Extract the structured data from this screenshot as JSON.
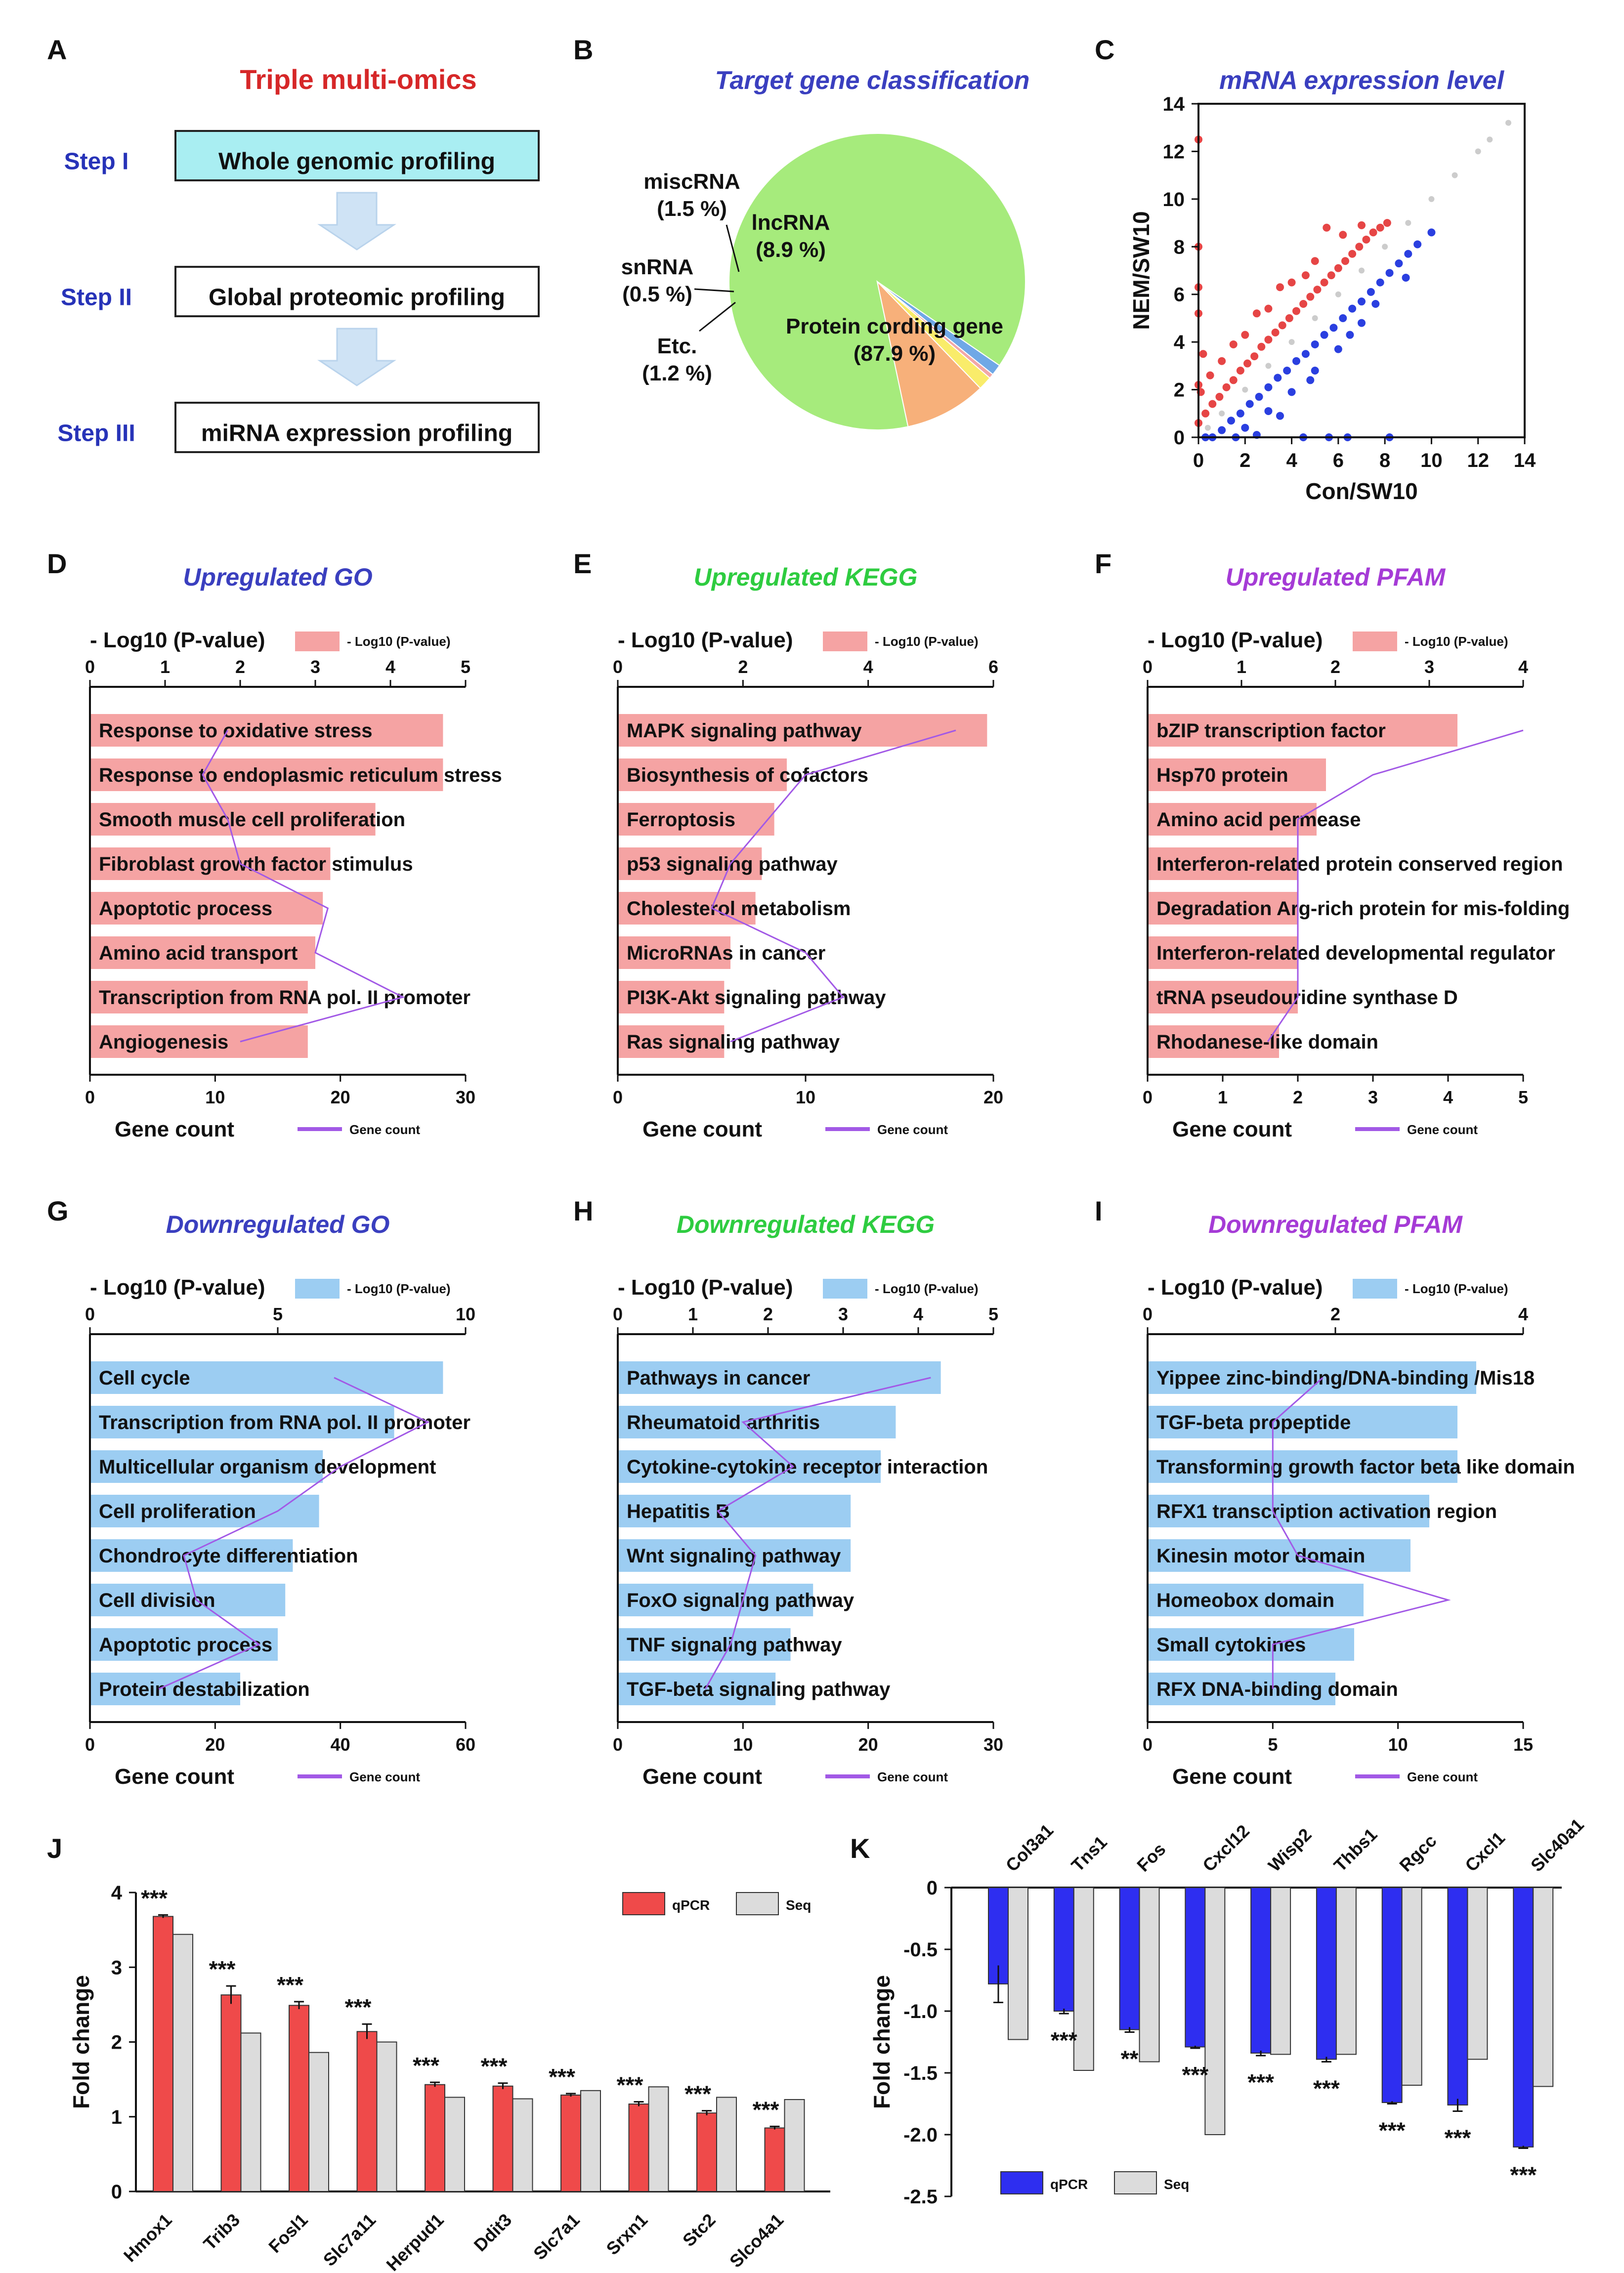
{
  "colors": {
    "title_red": "#d62728",
    "title_blue": "#3a3fbf",
    "title_green": "#2ecc40",
    "title_purple": "#a53bd6",
    "step_blue": "#2733b8",
    "step_box_fill": "#a9eef2",
    "arrow_fill": "#cfe3f5",
    "pie_green": "#a6eb7c",
    "pie_orange": "#f7b07a",
    "pie_yellow": "#f9ec6a",
    "pie_pink": "#f2a7a7",
    "pie_blue": "#6fa8e6",
    "scatter_red": "#e64545",
    "scatter_blue": "#2a3fe0",
    "scatter_grey": "#cccccc",
    "bar_pink": "#f5a3a3",
    "bar_lightblue": "#9ccdf2",
    "line_purple": "#a259e6",
    "bar_red": "#ef4a4a",
    "bar_grey": "#dcdcdc",
    "bar_darkblue": "#2e2ef0"
  },
  "panel_letters": [
    "A",
    "B",
    "C",
    "D",
    "E",
    "F",
    "G",
    "H",
    "I",
    "J",
    "K"
  ],
  "panel_a": {
    "title": "Triple multi-omics",
    "steps": [
      {
        "label": "Step I",
        "box": "Whole genomic profiling"
      },
      {
        "label": "Step II",
        "box": "Global proteomic profiling"
      },
      {
        "label": "Step III",
        "box": "miRNA expression profiling"
      }
    ]
  },
  "chart_data": [
    {
      "panel": "B",
      "type": "pie",
      "title": "Target gene classification",
      "slices": [
        {
          "name": "Protein cording gene",
          "percent": 87.9,
          "label": "Protein cording gene",
          "pct_label": "(87.9 %)",
          "color_key": "pie_green"
        },
        {
          "name": "Etc.",
          "percent": 1.2,
          "label": "Etc.",
          "pct_label": "(1.2 %)",
          "color_key": "pie_blue"
        },
        {
          "name": "snRNA",
          "percent": 0.5,
          "label": "snRNA",
          "pct_label": "(0.5 %)",
          "color_key": "pie_pink"
        },
        {
          "name": "miscRNA",
          "percent": 1.5,
          "label": "miscRNA",
          "pct_label": "(1.5 %)",
          "color_key": "pie_yellow"
        },
        {
          "name": "lncRNA",
          "percent": 8.9,
          "label": "lncRNA",
          "pct_label": "(8.9 %)",
          "color_key": "pie_orange"
        }
      ]
    },
    {
      "panel": "C",
      "type": "scatter",
      "title": "mRNA expression level",
      "xlabel": "Con/SW10",
      "ylabel": "NEM/SW10",
      "xlim": [
        0,
        14
      ],
      "ylim": [
        0,
        14
      ],
      "xticks": [
        "0",
        "2",
        "4",
        "6",
        "8",
        "10",
        "12",
        "14"
      ],
      "yticks": [
        "0",
        "2",
        "4",
        "6",
        "8",
        "10",
        "12",
        "14"
      ],
      "series": [
        {
          "name": "up",
          "color_key": "scatter_red",
          "points": [
            [
              0.0,
              0.6
            ],
            [
              0.3,
              1.0
            ],
            [
              0.6,
              1.4
            ],
            [
              0.9,
              1.7
            ],
            [
              1.2,
              2.1
            ],
            [
              1.5,
              2.4
            ],
            [
              1.8,
              2.8
            ],
            [
              2.1,
              3.1
            ],
            [
              2.4,
              3.4
            ],
            [
              2.7,
              3.8
            ],
            [
              3.0,
              4.1
            ],
            [
              3.3,
              4.4
            ],
            [
              3.6,
              4.7
            ],
            [
              3.9,
              5.0
            ],
            [
              4.2,
              5.3
            ],
            [
              4.5,
              5.6
            ],
            [
              4.8,
              5.9
            ],
            [
              5.1,
              6.2
            ],
            [
              5.4,
              6.5
            ],
            [
              5.7,
              6.8
            ],
            [
              6.0,
              7.1
            ],
            [
              6.3,
              7.4
            ],
            [
              6.6,
              7.7
            ],
            [
              6.9,
              8.0
            ],
            [
              7.2,
              8.3
            ],
            [
              7.5,
              8.6
            ],
            [
              7.8,
              8.8
            ],
            [
              8.1,
              9.0
            ],
            [
              1.0,
              3.2
            ],
            [
              2.0,
              4.3
            ],
            [
              3.0,
              5.4
            ],
            [
              4.0,
              6.5
            ],
            [
              5.0,
              7.4
            ],
            [
              0.5,
              2.6
            ],
            [
              0.2,
              3.5
            ],
            [
              0.0,
              5.2
            ],
            [
              0.0,
              6.3
            ],
            [
              0.0,
              8.0
            ],
            [
              0.0,
              12.5
            ],
            [
              5.5,
              8.8
            ],
            [
              6.2,
              8.5
            ],
            [
              3.5,
              6.3
            ],
            [
              2.5,
              5.2
            ],
            [
              1.5,
              3.9
            ],
            [
              0.1,
              1.9
            ],
            [
              0.0,
              2.2
            ],
            [
              4.6,
              6.8
            ],
            [
              7.0,
              8.9
            ]
          ]
        },
        {
          "name": "down",
          "color_key": "scatter_blue",
          "points": [
            [
              0.6,
              0.0
            ],
            [
              1.0,
              0.3
            ],
            [
              1.4,
              0.7
            ],
            [
              1.8,
              1.0
            ],
            [
              2.2,
              1.4
            ],
            [
              2.6,
              1.7
            ],
            [
              3.0,
              2.1
            ],
            [
              3.4,
              2.5
            ],
            [
              3.8,
              2.8
            ],
            [
              4.2,
              3.2
            ],
            [
              4.6,
              3.5
            ],
            [
              5.0,
              3.9
            ],
            [
              5.4,
              4.3
            ],
            [
              5.8,
              4.6
            ],
            [
              6.2,
              5.0
            ],
            [
              6.6,
              5.4
            ],
            [
              7.0,
              5.7
            ],
            [
              7.4,
              6.1
            ],
            [
              7.8,
              6.5
            ],
            [
              8.2,
              6.9
            ],
            [
              8.6,
              7.3
            ],
            [
              9.0,
              7.7
            ],
            [
              9.4,
              8.1
            ],
            [
              10.0,
              8.6
            ],
            [
              2.0,
              0.4
            ],
            [
              3.0,
              1.1
            ],
            [
              4.0,
              1.9
            ],
            [
              5.0,
              2.8
            ],
            [
              6.0,
              3.7
            ],
            [
              7.0,
              4.8
            ],
            [
              2.5,
              0.1
            ],
            [
              4.5,
              0.0
            ],
            [
              5.6,
              0.0
            ],
            [
              6.4,
              0.0
            ],
            [
              8.2,
              0.0
            ],
            [
              1.6,
              0.0
            ],
            [
              0.3,
              0.0
            ],
            [
              3.5,
              0.9
            ],
            [
              4.8,
              2.4
            ],
            [
              6.5,
              4.3
            ],
            [
              7.6,
              5.6
            ],
            [
              8.9,
              6.7
            ]
          ]
        },
        {
          "name": "unchanged",
          "color_key": "scatter_grey",
          "points": [
            [
              0.4,
              0.4
            ],
            [
              1,
              1
            ],
            [
              2,
              2
            ],
            [
              3,
              3
            ],
            [
              4,
              4
            ],
            [
              5,
              5
            ],
            [
              6,
              6
            ],
            [
              7,
              7
            ],
            [
              8,
              8
            ],
            [
              9,
              9
            ],
            [
              10,
              10
            ],
            [
              11,
              11
            ],
            [
              12,
              12
            ],
            [
              12.5,
              12.5
            ],
            [
              13.3,
              13.2
            ]
          ]
        }
      ]
    },
    {
      "panel": "D",
      "type": "bar",
      "title": "Upregulated GO",
      "top_axis_title": "- Log10 (P-value)",
      "legend_bar": "- Log10 (P-value)",
      "bottom_axis_title": "Gene count",
      "legend_line": "Gene count",
      "top_ticks": [
        "0",
        "1",
        "2",
        "3",
        "4",
        "5"
      ],
      "top_max": 5,
      "bottom_ticks": [
        "0",
        "10",
        "20",
        "30"
      ],
      "bottom_max": 30,
      "bar_color_key": "bar_pink",
      "categories": [
        "Response to oxidative stress",
        "Response to endoplasmic reticulum stress",
        "Smooth muscle cell proliferation",
        "Fibroblast growth factor stimulus",
        "Apoptotic process",
        "Amino acid transport",
        "Transcription from RNA pol. II promoter",
        "Angiogenesis"
      ],
      "pvalue_values": [
        4.7,
        4.7,
        3.8,
        3.2,
        3.1,
        3.0,
        2.9,
        2.9
      ],
      "gene_count_values": [
        11,
        9,
        11,
        12,
        19,
        18,
        25,
        12
      ]
    },
    {
      "panel": "E",
      "type": "bar",
      "title": "Upregulated KEGG",
      "top_axis_title": "- Log10 (P-value)",
      "legend_bar": "- Log10 (P-value)",
      "bottom_axis_title": "Gene count",
      "legend_line": "Gene count",
      "top_ticks": [
        "0",
        "2",
        "4",
        "6"
      ],
      "top_max": 6,
      "bottom_ticks": [
        "0",
        "10",
        "20"
      ],
      "bottom_max": 20,
      "bar_color_key": "bar_pink",
      "categories": [
        "MAPK signaling pathway",
        "Biosynthesis of cofactors",
        "Ferroptosis",
        "p53 signaling pathway",
        "Cholesterol metabolism",
        "MicroRNAs in cancer",
        "PI3K-Akt signaling pathway",
        "Ras signaling pathway"
      ],
      "pvalue_values": [
        5.9,
        2.7,
        2.5,
        2.3,
        2.2,
        1.8,
        1.7,
        1.7
      ],
      "gene_count_values": [
        18,
        10,
        8,
        6,
        5,
        10,
        12,
        6
      ]
    },
    {
      "panel": "F",
      "type": "bar",
      "title": "Upregulated PFAM",
      "top_axis_title": "- Log10 (P-value)",
      "legend_bar": "- Log10 (P-value)",
      "bottom_axis_title": "Gene count",
      "legend_line": "Gene count",
      "top_ticks": [
        "0",
        "1",
        "2",
        "3",
        "4"
      ],
      "top_max": 4,
      "bottom_ticks": [
        "0",
        "1",
        "2",
        "3",
        "4",
        "5"
      ],
      "bottom_max": 5,
      "bar_color_key": "bar_pink",
      "categories": [
        "bZIP transcription factor",
        "Hsp70 protein",
        "Amino acid permease",
        "Interferon-related protein conserved region",
        "Degradation Arg-rich protein for mis-folding",
        "Interferon-related developmental regulator",
        "tRNA pseudouridine synthase D",
        "Rhodanese-like domain"
      ],
      "pvalue_values": [
        3.3,
        1.9,
        1.8,
        1.6,
        1.6,
        1.6,
        1.6,
        1.4
      ],
      "gene_count_values": [
        5,
        3,
        2,
        2,
        2,
        2,
        2,
        1.6
      ]
    },
    {
      "panel": "G",
      "type": "bar",
      "title": "Downregulated GO",
      "top_axis_title": "- Log10 (P-value)",
      "legend_bar": "- Log10 (P-value)",
      "bottom_axis_title": "Gene count",
      "legend_line": "Gene count",
      "top_ticks": [
        "0",
        "5",
        "10"
      ],
      "top_max": 10,
      "bottom_ticks": [
        "0",
        "20",
        "40",
        "60"
      ],
      "bottom_max": 60,
      "bar_color_key": "bar_lightblue",
      "categories": [
        "Cell cycle",
        "Transcription from RNA pol. II promoter",
        "Multicellular organism development",
        "Cell proliferation",
        "Chondrocyte differentiation",
        "Cell division",
        "Apoptotic process",
        "Protein destabilization"
      ],
      "pvalue_values": [
        9.4,
        8.1,
        6.2,
        6.1,
        5.4,
        5.2,
        5.0,
        4.0
      ],
      "gene_count_values": [
        39,
        54,
        40,
        30,
        15,
        17,
        27,
        11
      ]
    },
    {
      "panel": "H",
      "type": "bar",
      "title": "Downregulated KEGG",
      "top_axis_title": "- Log10 (P-value)",
      "legend_bar": "- Log10 (P-value)",
      "bottom_axis_title": "Gene count",
      "legend_line": "Gene count",
      "top_ticks": [
        "0",
        "1",
        "2",
        "3",
        "4",
        "5"
      ],
      "top_max": 5,
      "bottom_ticks": [
        "0",
        "10",
        "20",
        "30"
      ],
      "bottom_max": 30,
      "bar_color_key": "bar_lightblue",
      "categories": [
        "Pathways in cancer",
        "Rheumatoid arthritis",
        "Cytokine-cytokine receptor interaction",
        "Hepatitis B",
        "Wnt signaling pathway",
        "FoxO signaling pathway",
        "TNF signaling pathway",
        "TGF-beta signaling pathway"
      ],
      "pvalue_values": [
        4.3,
        3.7,
        3.5,
        3.1,
        3.1,
        2.6,
        2.3,
        2.1
      ],
      "gene_count_values": [
        25,
        10,
        14,
        8,
        11,
        10,
        9,
        7
      ]
    },
    {
      "panel": "I",
      "type": "bar",
      "title": "Downregulated PFAM",
      "top_axis_title": "- Log10 (P-value)",
      "legend_bar": "- Log10 (P-value)",
      "bottom_axis_title": "Gene count",
      "legend_line": "Gene count",
      "top_ticks": [
        "0",
        "2",
        "4"
      ],
      "top_max": 4,
      "bottom_ticks": [
        "0",
        "5",
        "10",
        "15"
      ],
      "bottom_max": 15,
      "bar_color_key": "bar_lightblue",
      "categories": [
        "Yippee zinc-binding/DNA-binding /Mis18",
        "TGF-beta propeptide",
        "Transforming growth factor beta like domain",
        "RFX1 transcription activation region",
        "Kinesin motor domain",
        "Homeobox domain",
        "Small cytokines",
        "RFX DNA-binding domain"
      ],
      "pvalue_values": [
        3.5,
        3.3,
        3.3,
        3.0,
        2.8,
        2.3,
        2.2,
        2.0
      ],
      "gene_count_values": [
        7,
        5,
        5,
        5,
        6,
        12,
        5,
        5
      ]
    },
    {
      "panel": "J",
      "type": "bar",
      "ylabel": "Fold change",
      "ylim": [
        0,
        4
      ],
      "yticks": [
        "0",
        "1",
        "2",
        "3",
        "4"
      ],
      "categories": [
        "Hmox1",
        "Trib3",
        "Fosl1",
        "Slc7a11",
        "Herpud1",
        "Ddit3",
        "Slc7a1",
        "Srxn1",
        "Stc2",
        "Slco4a1"
      ],
      "series": [
        {
          "name": "qPCR",
          "color_key": "bar_red",
          "values": [
            3.68,
            2.63,
            2.49,
            2.14,
            1.43,
            1.41,
            1.29,
            1.17,
            1.05,
            0.85
          ],
          "errors": [
            0.02,
            0.12,
            0.05,
            0.1,
            0.03,
            0.04,
            0.02,
            0.03,
            0.03,
            0.02
          ]
        },
        {
          "name": "Seq",
          "color_key": "bar_grey",
          "values": [
            3.44,
            2.12,
            1.86,
            2.0,
            1.26,
            1.24,
            1.35,
            1.4,
            1.26,
            1.23
          ]
        }
      ],
      "significance": [
        "***",
        "***",
        "***",
        "***",
        "***",
        "***",
        "***",
        "***",
        "***",
        "***"
      ]
    },
    {
      "panel": "K",
      "type": "bar",
      "ylabel": "Fold change",
      "ylim": [
        -2.5,
        0
      ],
      "yticks": [
        "0",
        "-0.5",
        "-1.0",
        "-1.5",
        "-2.0",
        "-2.5"
      ],
      "categories": [
        "Col3a1",
        "Tns1",
        "Fos",
        "Cxcl12",
        "Wisp2",
        "Thbs1",
        "Rgcc",
        "Cxcl1",
        "Slc40a1"
      ],
      "series": [
        {
          "name": "qPCR",
          "color_key": "bar_darkblue",
          "values": [
            -0.78,
            -1.0,
            -1.15,
            -1.29,
            -1.34,
            -1.39,
            -1.74,
            -1.76,
            -2.1
          ],
          "errors": [
            0.15,
            0.02,
            0.02,
            0.01,
            0.02,
            0.02,
            0.01,
            0.05,
            0.01
          ]
        },
        {
          "name": "Seq",
          "color_key": "bar_grey",
          "values": [
            -1.23,
            -1.48,
            -1.41,
            -2.0,
            -1.35,
            -1.35,
            -1.6,
            -1.39,
            -1.61
          ]
        }
      ],
      "significance": [
        "",
        "***",
        "**",
        "***",
        "***",
        "***",
        "***",
        "***",
        "***"
      ]
    }
  ]
}
